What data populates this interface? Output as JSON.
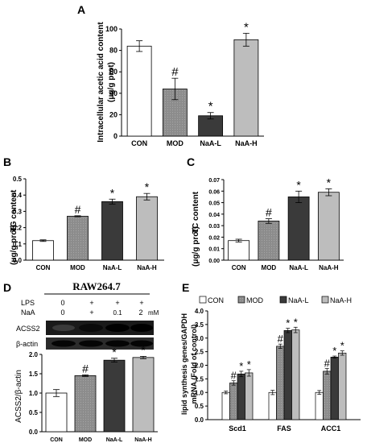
{
  "chart_data": [
    {
      "panel": "A",
      "type": "bar",
      "ylabel": "Intracellular acetic acid content",
      "yunit": "(μg/g prot)",
      "ylim": [
        0,
        100
      ],
      "yticks": [
        "0",
        "20",
        "40",
        "60",
        "80",
        "100"
      ],
      "categories": [
        "CON",
        "MOD",
        "NaA-L",
        "NaA-H"
      ],
      "values": [
        84,
        44,
        19,
        90
      ],
      "errors": [
        5,
        10,
        3,
        6
      ],
      "marks": [
        "",
        "#",
        "*",
        "*"
      ],
      "colors": [
        "#ffffff",
        "#8c8c8c",
        "#3a3a3a",
        "#bdbdbd"
      ]
    },
    {
      "panel": "B",
      "type": "bar",
      "ylabel": "TG content",
      "yunit": "(μg/g prot)",
      "ylim": [
        0,
        0.5
      ],
      "yticks": [
        "0.0",
        "0.1",
        "0.2",
        "0.3",
        "0.4",
        "0.5"
      ],
      "categories": [
        "CON",
        "MOD",
        "NaA-L",
        "NaA-H"
      ],
      "values": [
        0.12,
        0.27,
        0.36,
        0.39
      ],
      "errors": [
        0.005,
        0.003,
        0.015,
        0.02
      ],
      "marks": [
        "",
        "#",
        "*",
        "*"
      ],
      "colors": [
        "#ffffff",
        "#8c8c8c",
        "#3a3a3a",
        "#bdbdbd"
      ]
    },
    {
      "panel": "C",
      "type": "bar",
      "ylabel": "TC content",
      "yunit": "(μg/g prot)",
      "ylim": [
        0,
        0.07
      ],
      "yticks": [
        "0.00",
        "0.01",
        "0.02",
        "0.03",
        "0.04",
        "0.05",
        "0.06",
        "0.07"
      ],
      "categories": [
        "CON",
        "MOD",
        "NaA-L",
        "NaA-H"
      ],
      "values": [
        0.017,
        0.034,
        0.055,
        0.059
      ],
      "errors": [
        0.0012,
        0.002,
        0.005,
        0.003
      ],
      "marks": [
        "",
        "#",
        "*",
        "*"
      ],
      "colors": [
        "#ffffff",
        "#8c8c8c",
        "#3a3a3a",
        "#bdbdbd"
      ]
    },
    {
      "panel": "D",
      "type": "bar",
      "ylabel": "ACSS2/β-actin",
      "ylim": [
        0,
        2.0
      ],
      "yticks": [
        "0.0",
        "0.5",
        "1.0",
        "1.5",
        "2.0"
      ],
      "categories": [
        "CON",
        "MOD",
        "NaA-L",
        "NaA-H"
      ],
      "values": [
        1.0,
        1.45,
        1.85,
        1.92
      ],
      "errors": [
        0.09,
        0.02,
        0.05,
        0.03
      ],
      "marks": [
        "",
        "#",
        "*",
        "*"
      ],
      "colors": [
        "#ffffff",
        "#8c8c8c",
        "#3a3a3a",
        "#bdbdbd"
      ]
    },
    {
      "panel": "E",
      "type": "bar",
      "ylabel": "lipid synthesis genes/GAPDH",
      "ylabel2": "mRNA (Fold of control)",
      "ylim": [
        0,
        4.0
      ],
      "yticks": [
        "0.0",
        "0.5",
        "1.0",
        "1.5",
        "2.0",
        "2.5",
        "3.0",
        "3.5",
        "4.0"
      ],
      "categories": [
        "Scd1",
        "FAS",
        "ACC1"
      ],
      "legend_position": "top",
      "series": [
        {
          "name": "CON",
          "values": [
            1.0,
            1.0,
            1.0
          ],
          "errors": [
            0.05,
            0.08,
            0.07
          ],
          "marks": [
            "",
            "",
            ""
          ],
          "color": "#ffffff"
        },
        {
          "name": "MOD",
          "values": [
            1.35,
            2.7,
            1.78
          ],
          "errors": [
            0.08,
            0.08,
            0.1
          ],
          "marks": [
            "#",
            "#",
            "#"
          ],
          "color": "#8c8c8c"
        },
        {
          "name": "NaA-L",
          "values": [
            1.68,
            3.28,
            2.3
          ],
          "errors": [
            0.1,
            0.08,
            0.04
          ],
          "marks": [
            "*",
            "*",
            "*"
          ],
          "color": "#3a3a3a"
        },
        {
          "name": "NaA-H",
          "values": [
            1.72,
            3.3,
            2.45
          ],
          "errors": [
            0.12,
            0.1,
            0.08
          ],
          "marks": [
            "*",
            "*",
            "*"
          ],
          "color": "#bdbdbd"
        }
      ]
    }
  ],
  "panel_labels": [
    "A",
    "B",
    "C",
    "D",
    "E"
  ],
  "blot": {
    "title": "RAW264.7",
    "rows": [
      {
        "label": "LPS",
        "values": [
          "0",
          "+",
          "+",
          "+"
        ]
      },
      {
        "label": "NaA",
        "values": [
          "0",
          "+",
          "0.1",
          "2"
        ],
        "unit": "mM"
      }
    ],
    "bands": [
      "ACSS2",
      "β-actin"
    ]
  }
}
